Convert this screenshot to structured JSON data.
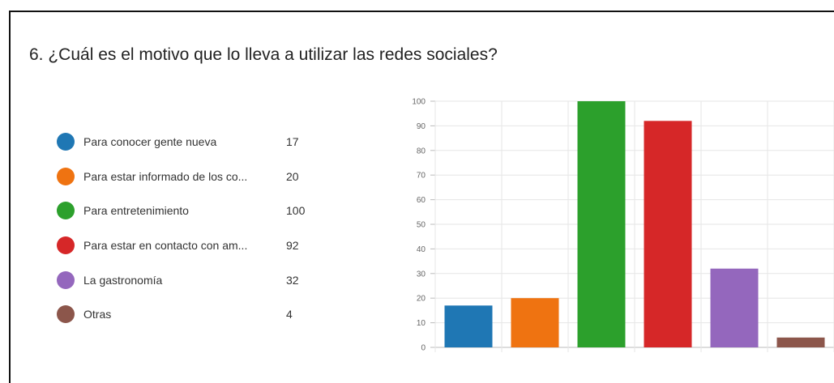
{
  "question": "6.  ¿Cuál es el motivo que lo lleva a utilizar las redes sociales?",
  "legend": [
    {
      "label": "Para conocer gente nueva",
      "value": "17",
      "color": "#1f77b4"
    },
    {
      "label": "Para estar informado de los co...",
      "value": "20",
      "color": "#ef7311"
    },
    {
      "label": "Para entretenimiento",
      "value": "100",
      "color": "#2ca02c"
    },
    {
      "label": "Para estar en contacto con am...",
      "value": "92",
      "color": "#d62728"
    },
    {
      "label": "La gastronomía",
      "value": "32",
      "color": "#9467bd"
    },
    {
      "label": "Otras",
      "value": "4",
      "color": "#8c564b"
    }
  ],
  "chart_data": {
    "type": "bar",
    "categories": [
      "Para conocer gente nueva",
      "Para estar informado de los co...",
      "Para entretenimiento",
      "Para estar en contacto con am...",
      "La gastronomía",
      "Otras"
    ],
    "values": [
      17,
      20,
      100,
      92,
      32,
      4
    ],
    "colors": [
      "#1f77b4",
      "#ef7311",
      "#2ca02c",
      "#d62728",
      "#9467bd",
      "#8c564b"
    ],
    "ylim": [
      0,
      100
    ],
    "yticks": [
      0,
      10,
      20,
      30,
      40,
      50,
      60,
      70,
      80,
      90,
      100
    ],
    "grid": true,
    "legend_position": "left"
  }
}
